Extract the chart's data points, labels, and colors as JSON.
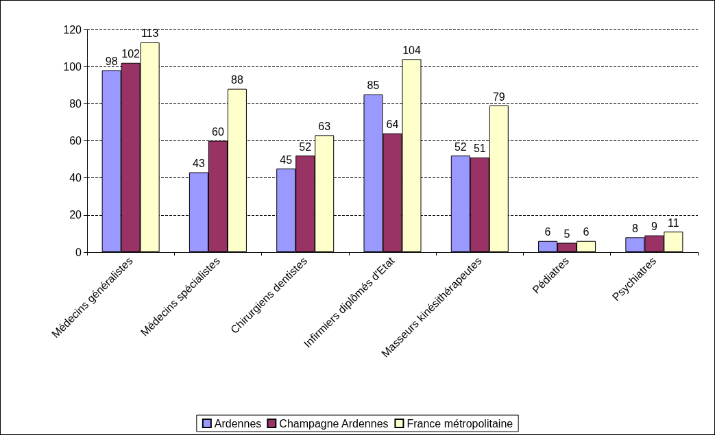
{
  "chart_data": {
    "type": "bar",
    "categories": [
      "Médecins généralistes",
      "Médecins spécialistes",
      "Chirurgiens dentistes",
      "Infirmiers diplômés d'Etat",
      "Masseurs kinésithérapeutes",
      "Pédiatres",
      "Psychiatres"
    ],
    "series": [
      {
        "name": "Ardennes",
        "color": "#9999ff",
        "values": [
          98,
          43,
          45,
          85,
          52,
          6,
          8
        ]
      },
      {
        "name": "Champagne Ardennes",
        "color": "#993366",
        "values": [
          102,
          60,
          52,
          64,
          51,
          5,
          9
        ]
      },
      {
        "name": "France métropolitaine",
        "color": "#ffffcc",
        "values": [
          113,
          88,
          63,
          104,
          79,
          6,
          11
        ]
      }
    ],
    "ylim": [
      0,
      120
    ],
    "yticks": [
      0,
      20,
      40,
      60,
      80,
      100,
      120
    ],
    "grid": "y",
    "line_style": "dashed",
    "data_labels": true,
    "legend": "bottom"
  }
}
